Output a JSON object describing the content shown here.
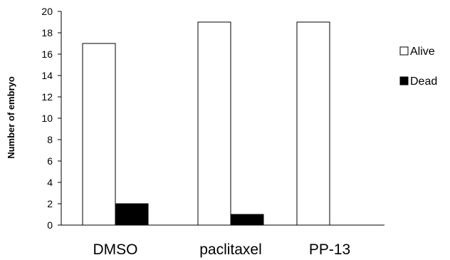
{
  "chart_data": {
    "type": "bar",
    "categories": [
      "DMSO",
      "paclitaxel",
      "PP-13"
    ],
    "series": [
      {
        "name": "Alive",
        "values": [
          17,
          19,
          19
        ],
        "color": "#ffffff"
      },
      {
        "name": "Dead",
        "values": [
          2,
          1,
          0
        ],
        "color": "#000000"
      }
    ],
    "title": "",
    "xlabel": "",
    "ylabel": "Number of embryo",
    "ylim": [
      0,
      20
    ],
    "yticks": [
      "0",
      "2",
      "4",
      "6",
      "8",
      "10",
      "12",
      "14",
      "16",
      "18",
      "20"
    ],
    "grid": false,
    "legend_position": "right"
  }
}
